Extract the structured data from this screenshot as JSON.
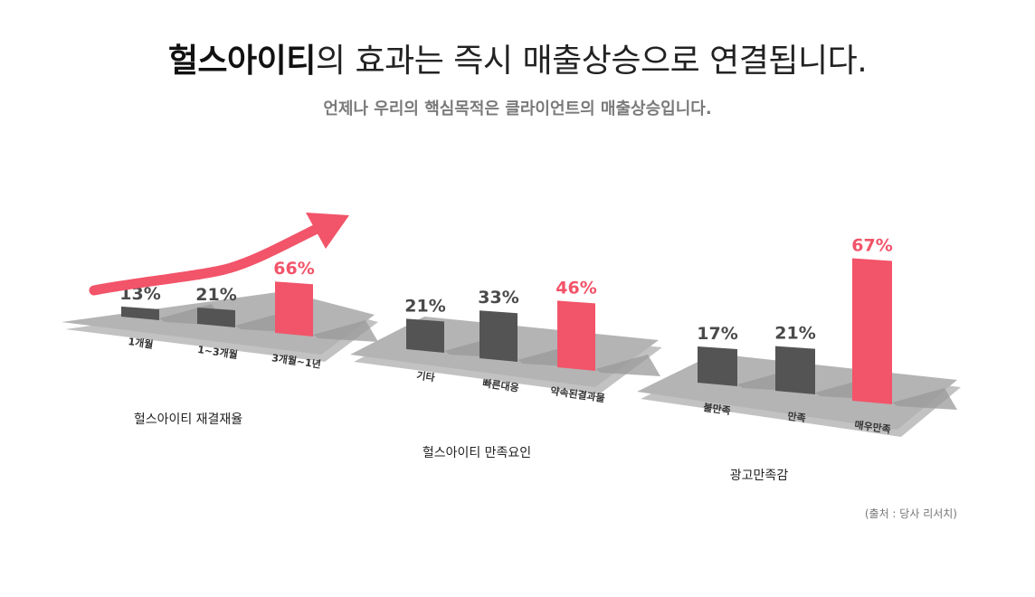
{
  "header": {
    "brand": "헐스아이티",
    "title_rest": "의 효과는 즉시 매출상승으로 연결됩니다.",
    "subtitle": "언제나 우리의 핵심목적은 클라이언트의 매출상승입니다."
  },
  "source_note": "(출처 : 당사 리서치)",
  "colors": {
    "dark_bar": "#545454",
    "highlight_bar": "#f25469",
    "floor": "#b4b4b4",
    "floor_shadow": "#8f8f8f",
    "arrow": "#f25469"
  },
  "chart_data": [
    {
      "type": "bar",
      "title": "헐스아이티 재결재율",
      "categories": [
        "1개월",
        "1~3개월",
        "3개월~1년"
      ],
      "values": [
        13,
        21,
        66
      ],
      "value_labels": [
        "13%",
        "21%",
        "66%"
      ],
      "highlight_index": 2,
      "trend_arrow": true
    },
    {
      "type": "bar",
      "title": "헐스아이티 만족요인",
      "categories": [
        "기타",
        "빠른대응",
        "약속된결과물"
      ],
      "values": [
        21,
        33,
        46
      ],
      "value_labels": [
        "21%",
        "33%",
        "46%"
      ],
      "highlight_index": 2,
      "trend_arrow": false
    },
    {
      "type": "bar",
      "title": "광고만족감",
      "categories": [
        "불만족",
        "만족",
        "매우만족"
      ],
      "values": [
        17,
        21,
        67
      ],
      "value_labels": [
        "17%",
        "21%",
        "67%"
      ],
      "highlight_index": 2,
      "trend_arrow": false
    }
  ]
}
